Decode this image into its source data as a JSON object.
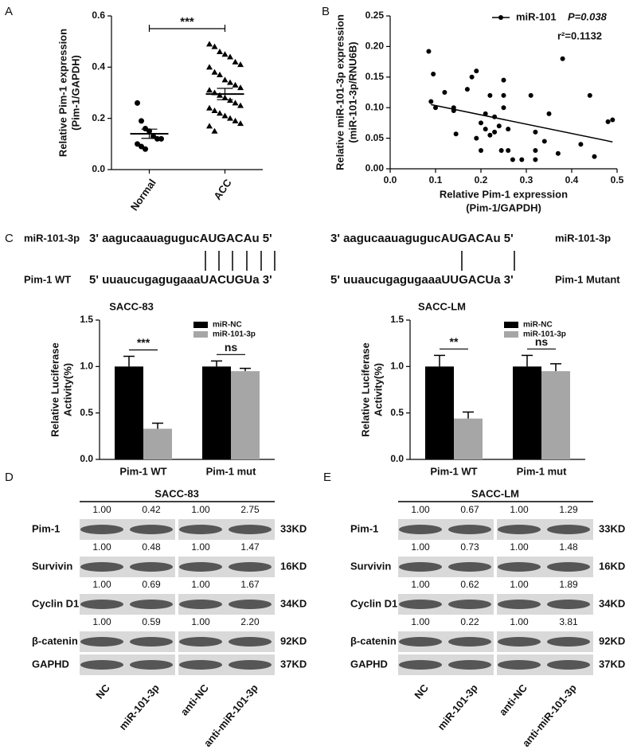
{
  "chart_data": [
    {
      "type": "dotplot",
      "panel": "A",
      "ylabel": [
        "Relative Pim-1 expression",
        "(Pim-1/GAPDH)"
      ],
      "categories": [
        "Normal",
        "ACC"
      ],
      "markers": [
        "circle",
        "triangle"
      ],
      "color": "#000000",
      "points": [
        [
          0.26,
          0.19,
          0.16,
          0.15,
          0.13,
          0.12,
          0.12,
          0.1,
          0.09,
          0.08
        ],
        [
          0.49,
          0.48,
          0.46,
          0.45,
          0.44,
          0.42,
          0.41,
          0.4,
          0.38,
          0.37,
          0.35,
          0.34,
          0.33,
          0.32,
          0.31,
          0.3,
          0.29,
          0.28,
          0.27,
          0.26,
          0.25,
          0.24,
          0.23,
          0.22,
          0.21,
          0.2,
          0.19,
          0.18,
          0.17,
          0.15
        ]
      ],
      "means": [
        0.14,
        0.295
      ],
      "errors": [
        0.018,
        0.022
      ],
      "ylim": [
        0,
        0.6
      ],
      "yticks": [
        {
          "value": 0,
          "label": "0.0"
        },
        0.2,
        0.4,
        0.6
      ],
      "annotation": "***"
    },
    {
      "type": "scatter",
      "panel": "B",
      "xlabel": [
        "Relative Pim-1 expression",
        "(Pim-1/GAPDH)"
      ],
      "ylabel": [
        "Relative miR-101-3p expression",
        "(miR-101-3p/RNU6B)"
      ],
      "name": "miR-101",
      "p_label": "P=0.038",
      "r2_label": "r²=0.1132",
      "color": "#000000",
      "x": [
        0.085,
        0.09,
        0.095,
        0.1,
        0.12,
        0.14,
        0.14,
        0.145,
        0.17,
        0.18,
        0.19,
        0.19,
        0.2,
        0.2,
        0.21,
        0.21,
        0.22,
        0.22,
        0.23,
        0.23,
        0.24,
        0.245,
        0.25,
        0.25,
        0.25,
        0.26,
        0.26,
        0.27,
        0.29,
        0.31,
        0.32,
        0.32,
        0.32,
        0.34,
        0.35,
        0.37,
        0.38,
        0.42,
        0.44,
        0.45,
        0.48,
        0.49
      ],
      "y": [
        0.192,
        0.11,
        0.155,
        0.1,
        0.125,
        0.1,
        0.095,
        0.057,
        0.13,
        0.15,
        0.16,
        0.05,
        0.075,
        0.03,
        0.065,
        0.09,
        0.12,
        0.055,
        0.085,
        0.06,
        0.07,
        0.03,
        0.145,
        0.1,
        0.12,
        0.065,
        0.03,
        0.015,
        0.015,
        0.12,
        0.06,
        0.03,
        0.015,
        0.045,
        0.09,
        0.025,
        0.18,
        0.04,
        0.12,
        0.02,
        0.077,
        0.08
      ],
      "fit_line": {
        "x": [
          0.09,
          0.49
        ],
        "y": [
          0.105,
          0.044
        ]
      },
      "xlim": [
        0,
        0.5
      ],
      "xticks": [
        {
          "value": 0,
          "label": "0.0"
        },
        0.1,
        0.2,
        0.3,
        0.4,
        0.5
      ],
      "ylim": [
        0,
        0.25
      ],
      "yticks": [
        {
          "value": 0,
          "label": "0.00"
        },
        0.05,
        {
          "value": 0.1,
          "label": "0.10"
        },
        0.15,
        {
          "value": 0.2,
          "label": "0.20"
        },
        0.25
      ]
    },
    {
      "type": "bar",
      "title": "SACC-83",
      "ylabel": [
        "Relative Luciferase",
        "Activity(%)"
      ],
      "categories": [
        "Pim-1 WT",
        "Pim-1 mut"
      ],
      "series": [
        {
          "name": "miR-NC",
          "color": "#000000",
          "values": [
            1.0,
            1.0
          ],
          "errors": [
            0.11,
            0.06
          ]
        },
        {
          "name": "miR-101-3p",
          "color": "#a6a6a6",
          "values": [
            0.33,
            0.95
          ],
          "errors": [
            0.06,
            0.03
          ]
        }
      ],
      "ylim": [
        0,
        1.5
      ],
      "yticks": [
        {
          "value": 0,
          "label": "0.0"
        },
        0.5,
        {
          "value": 1,
          "label": "1.0"
        },
        1.5
      ],
      "annotations": [
        "***",
        "ns"
      ]
    },
    {
      "type": "bar",
      "title": "SACC-LM",
      "ylabel": [
        "Relative Luciferase",
        "Activity(%)"
      ],
      "categories": [
        "Pim-1 WT",
        "Pim-1 mut"
      ],
      "series": [
        {
          "name": "miR-NC",
          "color": "#000000",
          "values": [
            1.0,
            1.0
          ],
          "errors": [
            0.12,
            0.12
          ]
        },
        {
          "name": "miR-101-3p",
          "color": "#a6a6a6",
          "values": [
            0.44,
            0.95
          ],
          "errors": [
            0.07,
            0.08
          ]
        }
      ],
      "ylim": [
        0,
        1.5
      ],
      "yticks": [
        {
          "value": 0,
          "label": "0.0"
        },
        0.5,
        {
          "value": 1,
          "label": "1.0"
        },
        1.5
      ],
      "annotations": [
        "**",
        "ns"
      ]
    }
  ],
  "sequences": {
    "panel": "C",
    "left": {
      "mirna_label": "miR-101-3p",
      "mirna": "3' aagucaauagugucAUGACAu 5'",
      "target_label": "Pim-1 WT",
      "target": "5' uuaucugagugaaaUACUGUa 3'"
    },
    "right": {
      "mirna_label": "miR-101-3p",
      "mirna": "3' aagucaauagugucAUGACAu 5'",
      "target_label": "Pim-1 Mutant",
      "target": "5' uuaucugagugaaaUUGACUa 3'"
    }
  },
  "blots": [
    {
      "panel": "D",
      "title": "SACC-83",
      "lanes": [
        "NC",
        "miR-101-3p",
        "anti-NC",
        "anti-miR-101-3p"
      ],
      "rows": [
        {
          "label": "Pim-1",
          "values": [
            "1.00",
            "0.42",
            "1.00",
            "2.75"
          ],
          "size": "33KD"
        },
        {
          "label": "Survivin",
          "values": [
            "1.00",
            "0.48",
            "1.00",
            "1.47"
          ],
          "size": "16KD"
        },
        {
          "label": "Cyclin D1",
          "values": [
            "1.00",
            "0.69",
            "1.00",
            "1.67"
          ],
          "size": "34KD"
        },
        {
          "label": "β-catenin",
          "values": [
            "1.00",
            "0.59",
            "1.00",
            "2.20"
          ],
          "size": "92KD"
        },
        {
          "label": "GAPHD",
          "values": [],
          "size": "37KD"
        }
      ]
    },
    {
      "panel": "E",
      "title": "SACC-LM",
      "lanes": [
        "NC",
        "miR-101-3p",
        "anti-NC",
        "anti-miR-101-3p"
      ],
      "rows": [
        {
          "label": "Pim-1",
          "values": [
            "1.00",
            "0.67",
            "1.00",
            "1.29"
          ],
          "size": "33KD"
        },
        {
          "label": "Survivin",
          "values": [
            "1.00",
            "0.73",
            "1.00",
            "1.48"
          ],
          "size": "16KD"
        },
        {
          "label": "Cyclin D1",
          "values": [
            "1.00",
            "0.62",
            "1.00",
            "1.89"
          ],
          "size": "34KD"
        },
        {
          "label": "β-catenin",
          "values": [
            "1.00",
            "0.22",
            "1.00",
            "3.81"
          ],
          "size": "92KD"
        },
        {
          "label": "GAPHD",
          "values": [],
          "size": "37KD"
        }
      ]
    }
  ]
}
